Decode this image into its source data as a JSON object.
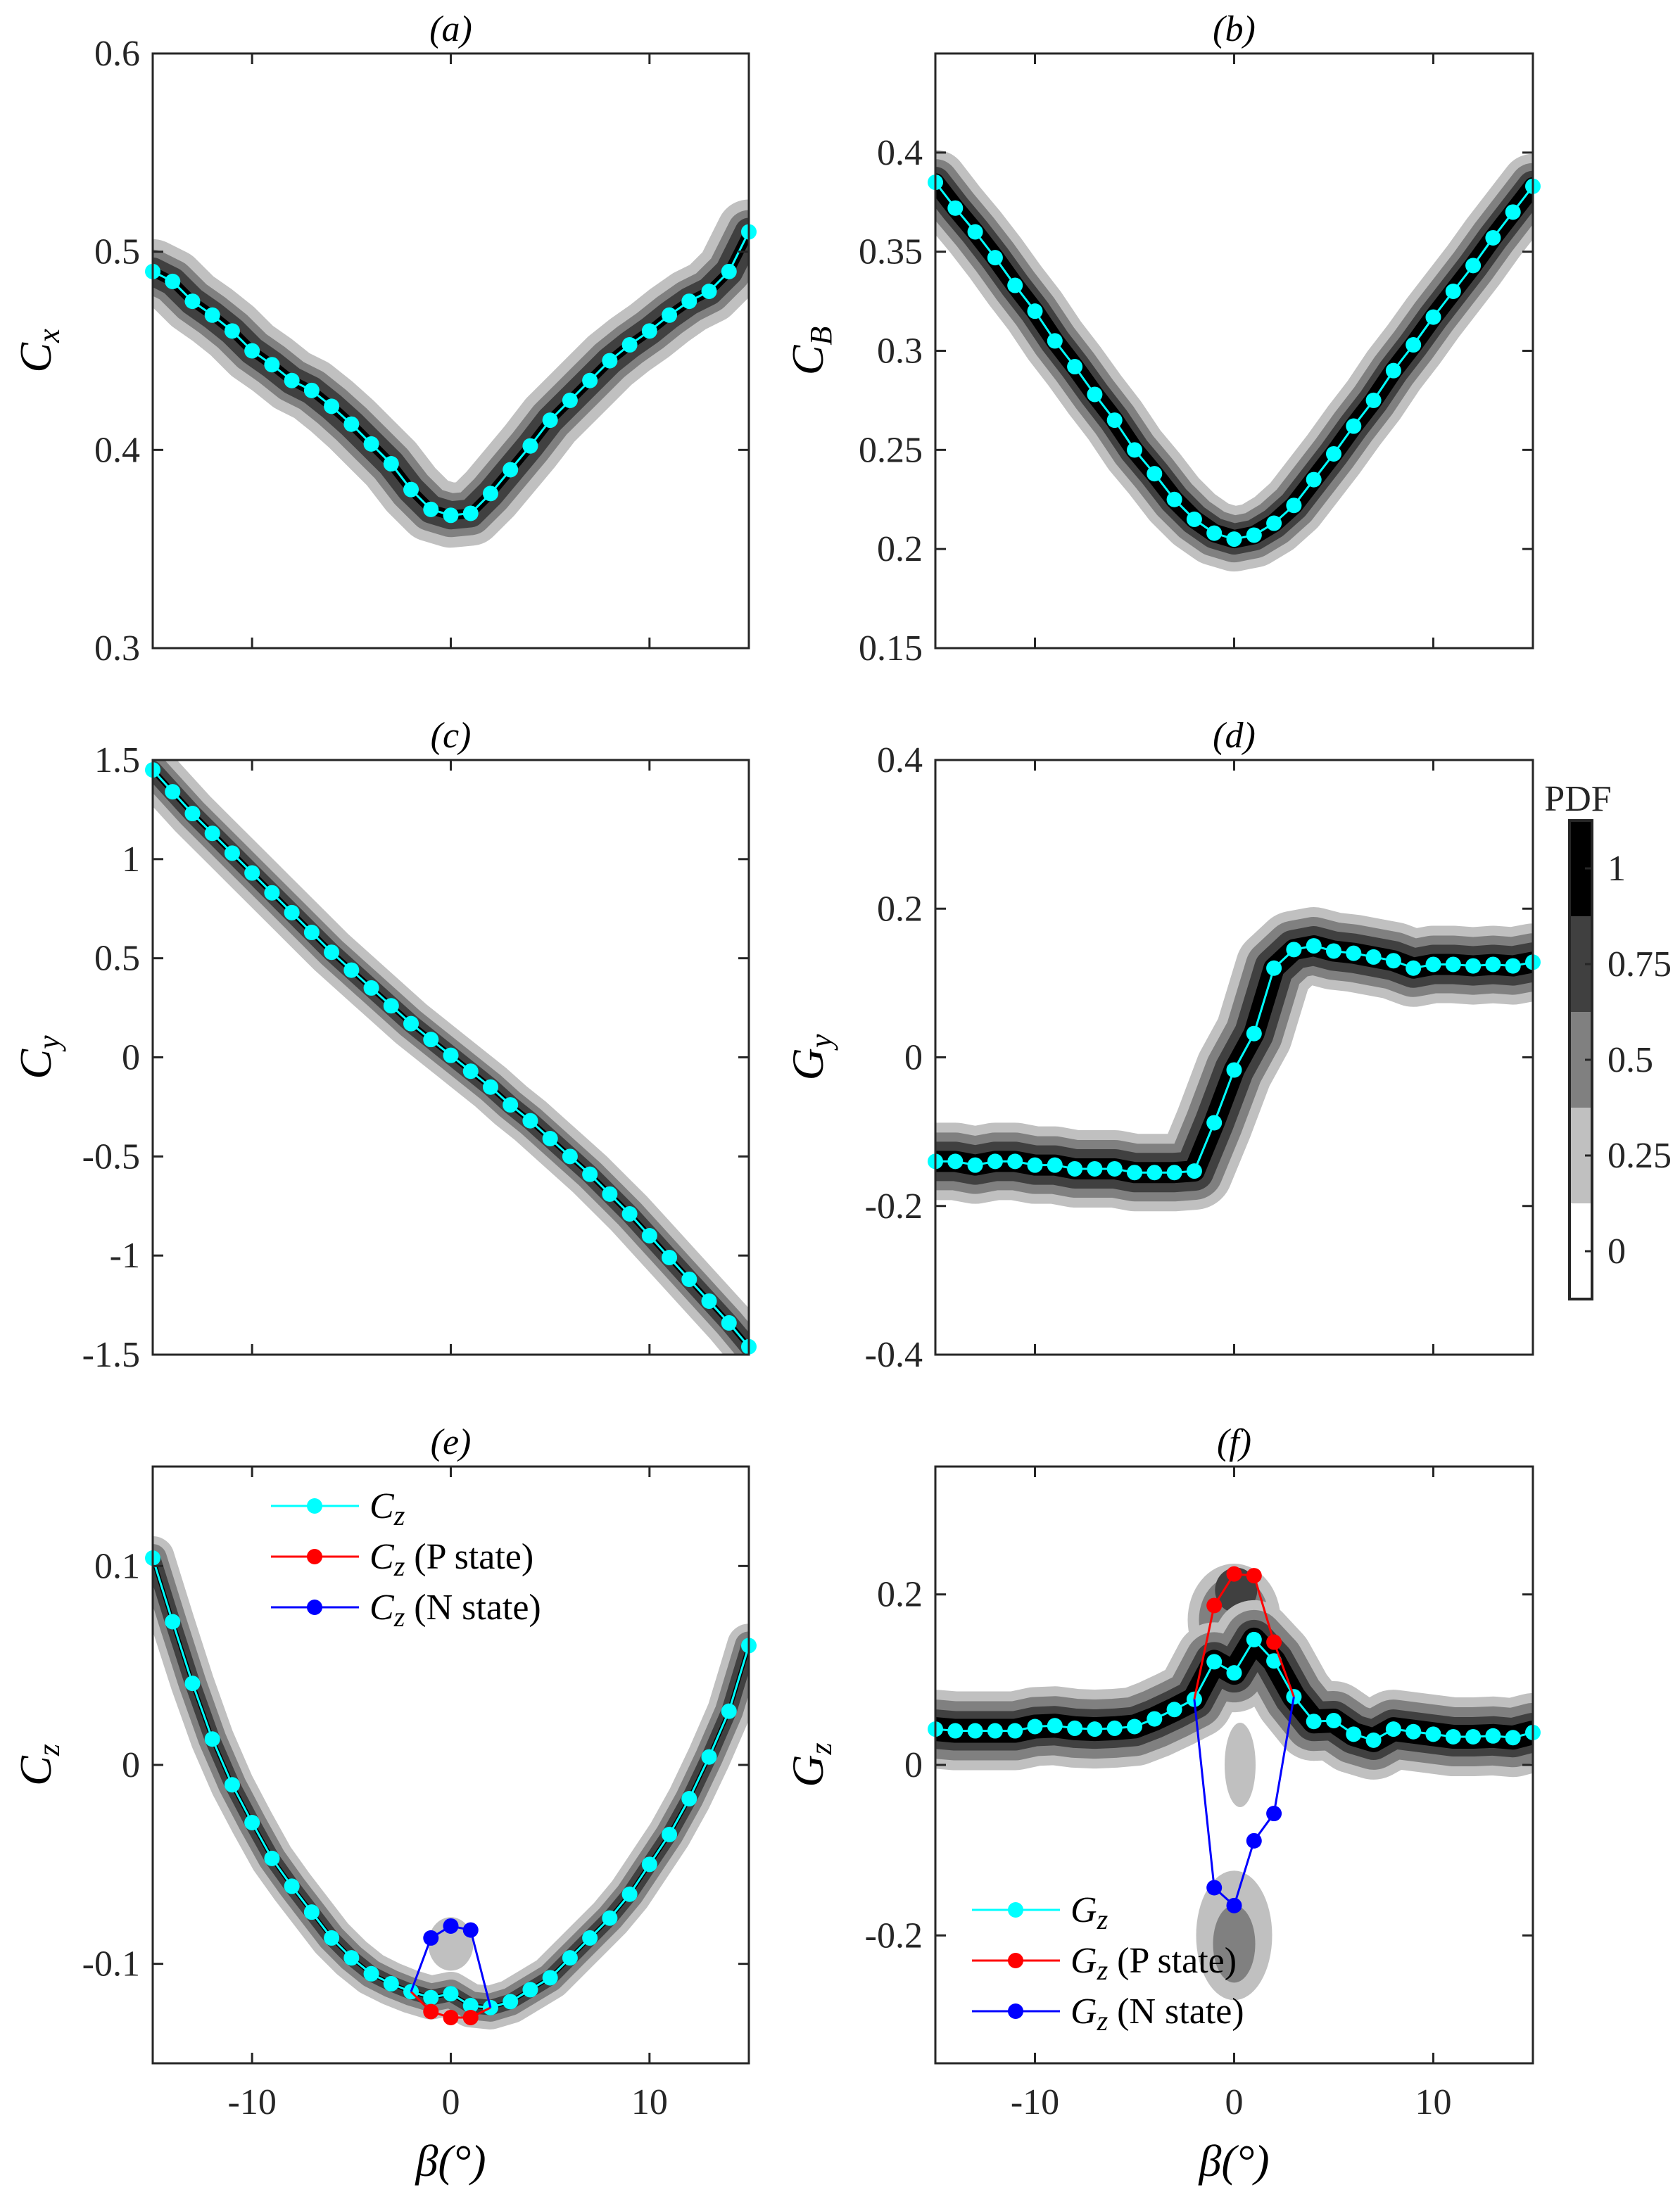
{
  "colors": {
    "main": "#00ffff",
    "p_state": "#ff0000",
    "n_state": "#0000ff",
    "pdf_levels": [
      "#ffffff",
      "#c0c0c0",
      "#808080",
      "#404040",
      "#000000"
    ]
  },
  "colorbar": {
    "title": "PDF",
    "ticks": [
      0,
      0.25,
      0.5,
      0.75,
      1
    ],
    "tick_labels": [
      "0",
      "0.25",
      "0.5",
      "0.75",
      "1"
    ]
  },
  "chart_data": [
    {
      "type": "line",
      "title": "(a)",
      "ylabel": {
        "main": "C",
        "sub": "x"
      },
      "xlabel": "",
      "xlim": [
        -15,
        15
      ],
      "ylim": [
        0.3,
        0.6
      ],
      "yticks": [
        0.3,
        0.4,
        0.5,
        0.6
      ],
      "ytick_labels": [
        "0.3",
        "0.4",
        "0.5",
        "0.6"
      ],
      "xticks": [
        -10,
        0,
        10
      ],
      "xtick_labels": [],
      "x": [
        -15,
        -14,
        -13,
        -12,
        -11,
        -10,
        -9,
        -8,
        -7,
        -6,
        -5,
        -4,
        -3,
        -2,
        -1,
        0,
        1,
        2,
        3,
        4,
        5,
        6,
        7,
        8,
        9,
        10,
        11,
        12,
        13,
        14,
        15
      ],
      "series": [
        {
          "name": "C_x",
          "values": [
            0.49,
            0.485,
            0.475,
            0.468,
            0.46,
            0.45,
            0.443,
            0.435,
            0.43,
            0.422,
            0.413,
            0.403,
            0.393,
            0.38,
            0.37,
            0.367,
            0.368,
            0.378,
            0.39,
            0.402,
            0.415,
            0.425,
            0.435,
            0.445,
            0.453,
            0.46,
            0.468,
            0.475,
            0.48,
            0.49,
            0.51
          ]
        }
      ]
    },
    {
      "type": "line",
      "title": "(b)",
      "ylabel": {
        "main": "C",
        "sub": "B"
      },
      "xlabel": "",
      "xlim": [
        -15,
        15
      ],
      "ylim": [
        0.15,
        0.45
      ],
      "yticks": [
        0.15,
        0.2,
        0.25,
        0.3,
        0.35,
        0.4
      ],
      "ytick_labels": [
        "0.15",
        "0.2",
        "0.25",
        "0.3",
        "0.35",
        "0.4"
      ],
      "xticks": [
        -10,
        0,
        10
      ],
      "xtick_labels": [],
      "x": [
        -15,
        -14,
        -13,
        -12,
        -11,
        -10,
        -9,
        -8,
        -7,
        -6,
        -5,
        -4,
        -3,
        -2,
        -1,
        0,
        1,
        2,
        3,
        4,
        5,
        6,
        7,
        8,
        9,
        10,
        11,
        12,
        13,
        14,
        15
      ],
      "series": [
        {
          "name": "C_B",
          "values": [
            0.385,
            0.372,
            0.36,
            0.347,
            0.333,
            0.32,
            0.305,
            0.292,
            0.278,
            0.265,
            0.25,
            0.238,
            0.225,
            0.215,
            0.208,
            0.205,
            0.207,
            0.213,
            0.222,
            0.235,
            0.248,
            0.262,
            0.275,
            0.29,
            0.303,
            0.317,
            0.33,
            0.343,
            0.357,
            0.37,
            0.383
          ]
        }
      ]
    },
    {
      "type": "line",
      "title": "(c)",
      "ylabel": {
        "main": "C",
        "sub": "y"
      },
      "xlabel": "",
      "xlim": [
        -15,
        15
      ],
      "ylim": [
        -1.5,
        1.5
      ],
      "yticks": [
        -1.5,
        -1,
        -0.5,
        0,
        0.5,
        1,
        1.5
      ],
      "ytick_labels": [
        "-1.5",
        "-1",
        "-0.5",
        "0",
        "0.5",
        "1",
        "1.5"
      ],
      "xticks": [
        -10,
        0,
        10
      ],
      "xtick_labels": [],
      "x": [
        -15,
        -14,
        -13,
        -12,
        -11,
        -10,
        -9,
        -8,
        -7,
        -6,
        -5,
        -4,
        -3,
        -2,
        -1,
        0,
        1,
        2,
        3,
        4,
        5,
        6,
        7,
        8,
        9,
        10,
        11,
        12,
        13,
        14,
        15
      ],
      "series": [
        {
          "name": "C_y",
          "values": [
            1.45,
            1.34,
            1.23,
            1.13,
            1.03,
            0.93,
            0.83,
            0.73,
            0.63,
            0.53,
            0.44,
            0.35,
            0.26,
            0.17,
            0.09,
            0.01,
            -0.07,
            -0.15,
            -0.24,
            -0.32,
            -0.41,
            -0.5,
            -0.59,
            -0.69,
            -0.79,
            -0.9,
            -1.01,
            -1.12,
            -1.23,
            -1.34,
            -1.46
          ]
        }
      ]
    },
    {
      "type": "line",
      "title": "(d)",
      "ylabel": {
        "main": "G",
        "sub": "y"
      },
      "xlabel": "",
      "xlim": [
        -15,
        15
      ],
      "ylim": [
        -0.4,
        0.4
      ],
      "yticks": [
        -0.4,
        -0.2,
        0,
        0.2,
        0.4
      ],
      "ytick_labels": [
        "-0.4",
        "-0.2",
        "0",
        "0.2",
        "0.4"
      ],
      "xticks": [
        -10,
        0,
        10
      ],
      "xtick_labels": [],
      "x": [
        -15,
        -14,
        -13,
        -12,
        -11,
        -10,
        -9,
        -8,
        -7,
        -6,
        -5,
        -4,
        -3,
        -2,
        -1,
        0,
        1,
        2,
        3,
        4,
        5,
        6,
        7,
        8,
        9,
        10,
        11,
        12,
        13,
        14,
        15
      ],
      "series": [
        {
          "name": "G_y",
          "values": [
            -0.14,
            -0.14,
            -0.145,
            -0.14,
            -0.14,
            -0.145,
            -0.145,
            -0.15,
            -0.15,
            -0.15,
            -0.155,
            -0.155,
            -0.155,
            -0.153,
            -0.088,
            -0.017,
            0.032,
            0.12,
            0.145,
            0.15,
            0.143,
            0.14,
            0.135,
            0.13,
            0.12,
            0.125,
            0.125,
            0.123,
            0.125,
            0.123,
            0.128
          ]
        }
      ]
    },
    {
      "type": "line",
      "title": "(e)",
      "ylabel": {
        "main": "C",
        "sub": "z"
      },
      "xlabel": "β(°)",
      "xlim": [
        -15,
        15
      ],
      "ylim": [
        -0.15,
        0.15
      ],
      "yticks": [
        -0.1,
        0,
        0.1
      ],
      "ytick_labels": [
        "-0.1",
        "0",
        "0.1"
      ],
      "xticks": [
        -10,
        0,
        10
      ],
      "xtick_labels": [
        "-10",
        "0",
        "10"
      ],
      "legend_position": "top-right",
      "x": [
        -15,
        -14,
        -13,
        -12,
        -11,
        -10,
        -9,
        -8,
        -7,
        -6,
        -5,
        -4,
        -3,
        -2,
        -1,
        0,
        1,
        2,
        3,
        4,
        5,
        6,
        7,
        8,
        9,
        10,
        11,
        12,
        13,
        14,
        15
      ],
      "series": [
        {
          "name": "C_z",
          "legend": {
            "main": "C",
            "sub": "z",
            "suffix": ""
          },
          "color_key": "main",
          "values": [
            0.104,
            0.072,
            0.041,
            0.013,
            -0.01,
            -0.029,
            -0.047,
            -0.061,
            -0.074,
            -0.087,
            -0.097,
            -0.105,
            -0.11,
            -0.114,
            -0.117,
            -0.115,
            -0.121,
            -0.122,
            -0.119,
            -0.113,
            -0.107,
            -0.097,
            -0.087,
            -0.077,
            -0.065,
            -0.05,
            -0.035,
            -0.017,
            0.004,
            0.027,
            0.06
          ]
        },
        {
          "name": "C_z (P state)",
          "legend": {
            "main": "C",
            "sub": "z",
            "suffix": " (P state)"
          },
          "color_key": "p_state",
          "x": [
            -2,
            -1,
            0,
            1,
            2
          ],
          "values": [
            -0.114,
            -0.124,
            -0.127,
            -0.127,
            -0.122
          ],
          "markers": [
            false,
            true,
            true,
            true,
            false
          ]
        },
        {
          "name": "C_z (N state)",
          "legend": {
            "main": "C",
            "sub": "z",
            "suffix": " (N state)"
          },
          "color_key": "n_state",
          "x": [
            -2,
            -1,
            0,
            1,
            2
          ],
          "values": [
            -0.114,
            -0.087,
            -0.081,
            -0.083,
            -0.122
          ],
          "markers": [
            false,
            true,
            true,
            true,
            false
          ]
        }
      ]
    },
    {
      "type": "line",
      "title": "(f)",
      "ylabel": {
        "main": "G",
        "sub": "z"
      },
      "xlabel": "β(°)",
      "xlim": [
        -15,
        15
      ],
      "ylim": [
        -0.35,
        0.35
      ],
      "yticks": [
        -0.2,
        0,
        0.2
      ],
      "ytick_labels": [
        "-0.2",
        "0",
        "0.2"
      ],
      "xticks": [
        -10,
        0,
        10
      ],
      "xtick_labels": [
        "-10",
        "0",
        "10"
      ],
      "legend_position": "bottom-left",
      "x": [
        -15,
        -14,
        -13,
        -12,
        -11,
        -10,
        -9,
        -8,
        -7,
        -6,
        -5,
        -4,
        -3,
        -2,
        -1,
        0,
        1,
        2,
        3,
        4,
        5,
        6,
        7,
        8,
        9,
        10,
        11,
        12,
        13,
        14,
        15
      ],
      "series": [
        {
          "name": "G_z",
          "legend": {
            "main": "G",
            "sub": "z",
            "suffix": ""
          },
          "color_key": "main",
          "values": [
            0.042,
            0.04,
            0.04,
            0.04,
            0.04,
            0.045,
            0.046,
            0.043,
            0.042,
            0.043,
            0.045,
            0.054,
            0.065,
            0.077,
            0.121,
            0.108,
            0.147,
            0.122,
            0.08,
            0.051,
            0.052,
            0.036,
            0.029,
            0.042,
            0.039,
            0.036,
            0.033,
            0.033,
            0.034,
            0.032,
            0.038
          ]
        },
        {
          "name": "G_z (P state)",
          "legend": {
            "main": "G",
            "sub": "z",
            "suffix": " (P state)"
          },
          "color_key": "p_state",
          "x": [
            -2,
            -1,
            0,
            1,
            2,
            3
          ],
          "values": [
            0.077,
            0.187,
            0.224,
            0.222,
            0.144,
            0.08
          ],
          "markers": [
            false,
            true,
            true,
            true,
            true,
            false
          ]
        },
        {
          "name": "G_z (N state)",
          "legend": {
            "main": "G",
            "sub": "z",
            "suffix": " (N state)"
          },
          "color_key": "n_state",
          "x": [
            -2,
            -1,
            0,
            1,
            2,
            3
          ],
          "values": [
            0.077,
            -0.144,
            -0.165,
            -0.089,
            -0.057,
            0.08
          ],
          "markers": [
            false,
            true,
            true,
            true,
            true,
            false
          ]
        }
      ]
    }
  ]
}
